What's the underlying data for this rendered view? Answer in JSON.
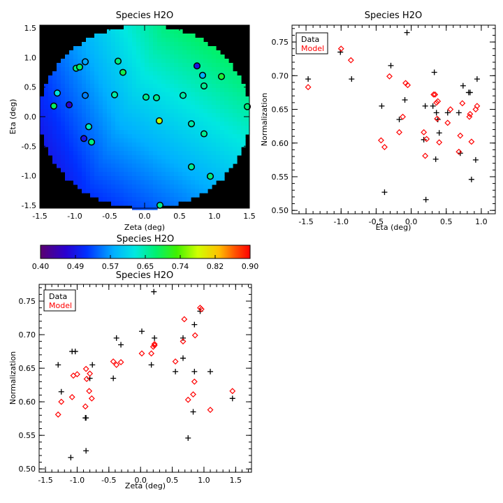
{
  "colorbar": {
    "title": "Species H2O",
    "range": [
      0.4,
      0.9
    ],
    "tick_labels": [
      "0.40",
      "0.49",
      "0.57",
      "0.65",
      "0.74",
      "0.82",
      "0.90"
    ],
    "colormap": "rainbow (purple-blue-cyan-green-yellow-red)"
  },
  "chart_data": [
    {
      "id": "map",
      "type": "heatmap",
      "title": "Species H2O",
      "xlabel": "Zeta (deg)",
      "ylabel": "Eta (deg)",
      "xlim": [
        -1.5,
        1.5
      ],
      "ylim": [
        -1.55,
        1.55
      ],
      "xticks": [
        "-1.5",
        "-1.0",
        "-0.5",
        "0.0",
        "0.5",
        "1.0",
        "1.5"
      ],
      "yticks": [
        "-1.5",
        "-1.0",
        "-0.5",
        "0.0",
        "0.5",
        "1.0",
        "1.5"
      ],
      "background": "black outside circular field",
      "field_model": "smooth gradient: ~0.50 at lower-left to ~0.70 at right",
      "points": [
        {
          "zeta": -1.25,
          "eta": 0.4,
          "value": 0.62
        },
        {
          "zeta": -1.3,
          "eta": 0.18,
          "value": 0.68
        },
        {
          "zeta": -1.08,
          "eta": 0.2,
          "value": 0.46
        },
        {
          "zeta": -0.98,
          "eta": 0.82,
          "value": 0.67
        },
        {
          "zeta": -0.93,
          "eta": 0.84,
          "value": 0.68
        },
        {
          "zeta": -0.85,
          "eta": 0.93,
          "value": 0.57
        },
        {
          "zeta": -0.85,
          "eta": 0.36,
          "value": 0.55
        },
        {
          "zeta": -0.87,
          "eta": -0.37,
          "value": 0.48
        },
        {
          "zeta": -0.8,
          "eta": -0.17,
          "value": 0.64
        },
        {
          "zeta": -0.76,
          "eta": -0.43,
          "value": 0.67
        },
        {
          "zeta": -0.43,
          "eta": 0.37,
          "value": 0.65
        },
        {
          "zeta": -0.38,
          "eta": 0.94,
          "value": 0.67
        },
        {
          "zeta": -0.31,
          "eta": 0.75,
          "value": 0.69
        },
        {
          "zeta": 0.02,
          "eta": 0.33,
          "value": 0.66
        },
        {
          "zeta": 0.17,
          "eta": 0.32,
          "value": 0.66
        },
        {
          "zeta": 0.21,
          "eta": -0.07,
          "value": 0.77
        },
        {
          "zeta": 0.22,
          "eta": -1.5,
          "value": 0.66
        },
        {
          "zeta": 0.55,
          "eta": 0.36,
          "value": 0.65
        },
        {
          "zeta": 0.67,
          "eta": -0.12,
          "value": 0.65
        },
        {
          "zeta": 0.67,
          "eta": -0.85,
          "value": 0.66
        },
        {
          "zeta": 0.75,
          "eta": 0.86,
          "value": 0.48
        },
        {
          "zeta": 0.83,
          "eta": 0.7,
          "value": 0.58
        },
        {
          "zeta": 0.85,
          "eta": 0.52,
          "value": 0.66
        },
        {
          "zeta": 0.85,
          "eta": -0.29,
          "value": 0.66
        },
        {
          "zeta": 0.94,
          "eta": -1.01,
          "value": 0.67
        },
        {
          "zeta": 1.1,
          "eta": 0.68,
          "value": 0.7
        },
        {
          "zeta": 1.47,
          "eta": 0.17,
          "value": 0.67
        }
      ]
    },
    {
      "id": "eta",
      "type": "scatter",
      "title": "Species H2O",
      "xlabel": "Eta (deg)",
      "ylabel": "Normalization",
      "xlim": [
        -1.7,
        1.2
      ],
      "ylim": [
        0.495,
        0.775
      ],
      "xticks": [
        "-1.5",
        "-1.0",
        "-0.5",
        "0.0",
        "0.5",
        "1.0"
      ],
      "yticks": [
        "0.50",
        "0.55",
        "0.60",
        "0.65",
        "0.70",
        "0.75"
      ],
      "legend": {
        "position": "top-left",
        "entries": [
          {
            "label": "Data",
            "color": "#000000"
          },
          {
            "label": "Model",
            "color": "#ff0000"
          }
        ]
      },
      "series": [
        {
          "name": "Data",
          "marker": "plus",
          "color": "#000000",
          "points": [
            [
              -1.47,
              0.695
            ],
            [
              -1.01,
              0.735
            ],
            [
              -0.85,
              0.695
            ],
            [
              -0.42,
              0.655
            ],
            [
              -0.38,
              0.527
            ],
            [
              -0.29,
              0.715
            ],
            [
              -0.17,
              0.635
            ],
            [
              -0.09,
              0.664
            ],
            [
              -0.06,
              0.764
            ],
            [
              0.18,
              0.605
            ],
            [
              0.2,
              0.655
            ],
            [
              0.21,
              0.516
            ],
            [
              0.31,
              0.655
            ],
            [
              0.33,
              0.705
            ],
            [
              0.35,
              0.576
            ],
            [
              0.36,
              0.645
            ],
            [
              0.38,
              0.635
            ],
            [
              0.4,
              0.615
            ],
            [
              0.52,
              0.645
            ],
            [
              0.68,
              0.645
            ],
            [
              0.7,
              0.585
            ],
            [
              0.74,
              0.685
            ],
            [
              0.82,
              0.675
            ],
            [
              0.84,
              0.675
            ],
            [
              0.86,
              0.546
            ],
            [
              0.92,
              0.575
            ],
            [
              0.94,
              0.695
            ]
          ]
        },
        {
          "name": "Model",
          "marker": "diamond",
          "color": "#ff0000",
          "points": [
            [
              -1.47,
              0.683
            ],
            [
              -1.0,
              0.74
            ],
            [
              -0.86,
              0.723
            ],
            [
              -0.43,
              0.604
            ],
            [
              -0.38,
              0.594
            ],
            [
              -0.31,
              0.699
            ],
            [
              -0.17,
              0.616
            ],
            [
              -0.12,
              0.639
            ],
            [
              -0.08,
              0.689
            ],
            [
              -0.05,
              0.686
            ],
            [
              0.18,
              0.616
            ],
            [
              0.2,
              0.581
            ],
            [
              0.22,
              0.606
            ],
            [
              0.32,
              0.672
            ],
            [
              0.34,
              0.672
            ],
            [
              0.36,
              0.66
            ],
            [
              0.37,
              0.636
            ],
            [
              0.38,
              0.662
            ],
            [
              0.4,
              0.601
            ],
            [
              0.52,
              0.63
            ],
            [
              0.56,
              0.65
            ],
            [
              0.68,
              0.587
            ],
            [
              0.7,
              0.611
            ],
            [
              0.73,
              0.659
            ],
            [
              0.83,
              0.639
            ],
            [
              0.84,
              0.643
            ],
            [
              0.86,
              0.602
            ],
            [
              0.92,
              0.65
            ],
            [
              0.94,
              0.655
            ]
          ]
        }
      ]
    },
    {
      "id": "zeta",
      "type": "scatter",
      "title": "Species H2O",
      "xlabel": "Zeta (deg)",
      "ylabel": "Normalization",
      "xlim": [
        -1.6,
        1.75
      ],
      "ylim": [
        0.495,
        0.775
      ],
      "xticks": [
        "-1.5",
        "-1.0",
        "-0.5",
        "0.0",
        "0.5",
        "1.0",
        "1.5"
      ],
      "yticks": [
        "0.50",
        "0.55",
        "0.60",
        "0.65",
        "0.70",
        "0.75"
      ],
      "legend": {
        "position": "top-left",
        "entries": [
          {
            "label": "Data",
            "color": "#000000"
          },
          {
            "label": "Model",
            "color": "#ff0000"
          }
        ]
      },
      "series": [
        {
          "name": "Data",
          "marker": "plus",
          "color": "#000000",
          "points": [
            [
              -1.3,
              0.655
            ],
            [
              -1.25,
              0.615
            ],
            [
              -1.1,
              0.517
            ],
            [
              -1.08,
              0.675
            ],
            [
              -1.03,
              0.675
            ],
            [
              -0.87,
              0.576
            ],
            [
              -0.86,
              0.576
            ],
            [
              -0.86,
              0.527
            ],
            [
              -0.8,
              0.635
            ],
            [
              -0.76,
              0.655
            ],
            [
              -0.43,
              0.635
            ],
            [
              -0.38,
              0.695
            ],
            [
              -0.31,
              0.685
            ],
            [
              0.02,
              0.705
            ],
            [
              0.17,
              0.655
            ],
            [
              0.21,
              0.764
            ],
            [
              0.22,
              0.695
            ],
            [
              0.55,
              0.645
            ],
            [
              0.67,
              0.665
            ],
            [
              0.67,
              0.695
            ],
            [
              0.75,
              0.546
            ],
            [
              0.83,
              0.585
            ],
            [
              0.85,
              0.645
            ],
            [
              0.85,
              0.715
            ],
            [
              0.94,
              0.735
            ],
            [
              1.1,
              0.645
            ],
            [
              1.45,
              0.605
            ]
          ]
        },
        {
          "name": "Model",
          "marker": "diamond",
          "color": "#ff0000",
          "points": [
            [
              -1.3,
              0.581
            ],
            [
              -1.25,
              0.6
            ],
            [
              -1.08,
              0.607
            ],
            [
              -1.06,
              0.639
            ],
            [
              -1.0,
              0.641
            ],
            [
              -0.87,
              0.593
            ],
            [
              -0.86,
              0.649
            ],
            [
              -0.85,
              0.634
            ],
            [
              -0.81,
              0.616
            ],
            [
              -0.8,
              0.642
            ],
            [
              -0.77,
              0.605
            ],
            [
              -0.43,
              0.66
            ],
            [
              -0.38,
              0.655
            ],
            [
              -0.31,
              0.659
            ],
            [
              0.02,
              0.672
            ],
            [
              0.17,
              0.672
            ],
            [
              0.2,
              0.682
            ],
            [
              0.22,
              0.686
            ],
            [
              0.22,
              0.684
            ],
            [
              0.55,
              0.66
            ],
            [
              0.67,
              0.69
            ],
            [
              0.69,
              0.723
            ],
            [
              0.75,
              0.603
            ],
            [
              0.83,
              0.611
            ],
            [
              0.85,
              0.63
            ],
            [
              0.86,
              0.699
            ],
            [
              0.94,
              0.74
            ],
            [
              0.96,
              0.738
            ],
            [
              1.1,
              0.588
            ],
            [
              1.45,
              0.616
            ]
          ]
        }
      ]
    }
  ]
}
